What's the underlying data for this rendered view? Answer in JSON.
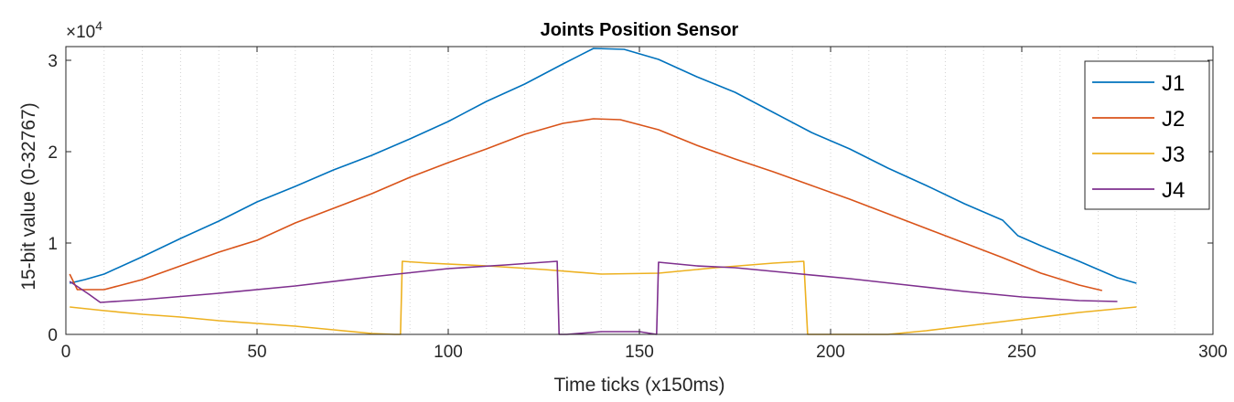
{
  "chart_data": {
    "type": "line",
    "title": "Joints Position Sensor",
    "xlabel": "Time ticks (x150ms)",
    "ylabel": "15-bit value (0-32767)",
    "y_exponent_base": "×10",
    "y_exponent_power": "4",
    "xlim": [
      0,
      300
    ],
    "ylim": [
      0,
      31500
    ],
    "xticks": [
      0,
      50,
      100,
      150,
      200,
      250,
      300
    ],
    "xtick_labels": [
      "0",
      "50",
      "100",
      "150",
      "200",
      "250",
      "300"
    ],
    "yticks": [
      0,
      10000,
      20000,
      30000
    ],
    "ytick_labels": [
      "0",
      "1",
      "2",
      "3"
    ],
    "grid": "vertical-dotted",
    "legend_position": "top-right",
    "series": [
      {
        "name": "J1",
        "color": "#0072BD",
        "points": [
          [
            1,
            5600
          ],
          [
            5,
            6000
          ],
          [
            10,
            6600
          ],
          [
            20,
            8500
          ],
          [
            30,
            10500
          ],
          [
            40,
            12400
          ],
          [
            50,
            14500
          ],
          [
            60,
            16200
          ],
          [
            70,
            18000
          ],
          [
            80,
            19600
          ],
          [
            90,
            21400
          ],
          [
            100,
            23300
          ],
          [
            110,
            25500
          ],
          [
            120,
            27400
          ],
          [
            130,
            29600
          ],
          [
            138,
            31300
          ],
          [
            146,
            31200
          ],
          [
            155,
            30100
          ],
          [
            165,
            28200
          ],
          [
            175,
            26500
          ],
          [
            185,
            24300
          ],
          [
            195,
            22100
          ],
          [
            205,
            20300
          ],
          [
            215,
            18200
          ],
          [
            225,
            16300
          ],
          [
            235,
            14300
          ],
          [
            245,
            12500
          ],
          [
            249,
            10800
          ],
          [
            255,
            9700
          ],
          [
            265,
            8000
          ],
          [
            275,
            6200
          ],
          [
            280,
            5600
          ]
        ]
      },
      {
        "name": "J2",
        "color": "#D95319",
        "points": [
          [
            1,
            6600
          ],
          [
            3,
            4900
          ],
          [
            10,
            4900
          ],
          [
            20,
            6000
          ],
          [
            30,
            7500
          ],
          [
            40,
            9000
          ],
          [
            50,
            10300
          ],
          [
            60,
            12200
          ],
          [
            70,
            13800
          ],
          [
            80,
            15400
          ],
          [
            90,
            17200
          ],
          [
            100,
            18800
          ],
          [
            110,
            20300
          ],
          [
            120,
            21900
          ],
          [
            130,
            23100
          ],
          [
            138,
            23600
          ],
          [
            145,
            23500
          ],
          [
            155,
            22400
          ],
          [
            165,
            20700
          ],
          [
            175,
            19200
          ],
          [
            185,
            17800
          ],
          [
            195,
            16300
          ],
          [
            205,
            14800
          ],
          [
            215,
            13200
          ],
          [
            225,
            11600
          ],
          [
            235,
            10000
          ],
          [
            245,
            8400
          ],
          [
            255,
            6700
          ],
          [
            265,
            5400
          ],
          [
            271,
            4800
          ]
        ]
      },
      {
        "name": "J3",
        "color": "#EDB120",
        "points": [
          [
            1,
            3000
          ],
          [
            10,
            2600
          ],
          [
            20,
            2200
          ],
          [
            30,
            1900
          ],
          [
            40,
            1500
          ],
          [
            50,
            1200
          ],
          [
            60,
            900
          ],
          [
            70,
            500
          ],
          [
            80,
            100
          ],
          [
            86,
            0
          ],
          [
            87.5,
            0
          ],
          [
            88,
            8000
          ],
          [
            95,
            7800
          ],
          [
            110,
            7500
          ],
          [
            125,
            7100
          ],
          [
            140,
            6600
          ],
          [
            155,
            6700
          ],
          [
            170,
            7300
          ],
          [
            185,
            7800
          ],
          [
            193,
            8000
          ],
          [
            194,
            0
          ],
          [
            215,
            0
          ],
          [
            225,
            400
          ],
          [
            235,
            900
          ],
          [
            245,
            1400
          ],
          [
            255,
            1900
          ],
          [
            265,
            2400
          ],
          [
            275,
            2800
          ],
          [
            280,
            3000
          ]
        ]
      },
      {
        "name": "J4",
        "color": "#7E2F8E",
        "points": [
          [
            1,
            5800
          ],
          [
            6,
            4400
          ],
          [
            9,
            3500
          ],
          [
            20,
            3800
          ],
          [
            40,
            4500
          ],
          [
            60,
            5300
          ],
          [
            80,
            6300
          ],
          [
            100,
            7200
          ],
          [
            115,
            7600
          ],
          [
            125,
            7900
          ],
          [
            128.5,
            8000
          ],
          [
            129,
            0
          ],
          [
            131,
            0
          ],
          [
            140,
            300
          ],
          [
            150,
            300
          ],
          [
            154.5,
            0
          ],
          [
            155,
            7900
          ],
          [
            165,
            7500
          ],
          [
            175,
            7300
          ],
          [
            190,
            6700
          ],
          [
            205,
            6100
          ],
          [
            220,
            5400
          ],
          [
            235,
            4700
          ],
          [
            250,
            4100
          ],
          [
            265,
            3700
          ],
          [
            275,
            3600
          ]
        ]
      }
    ]
  }
}
